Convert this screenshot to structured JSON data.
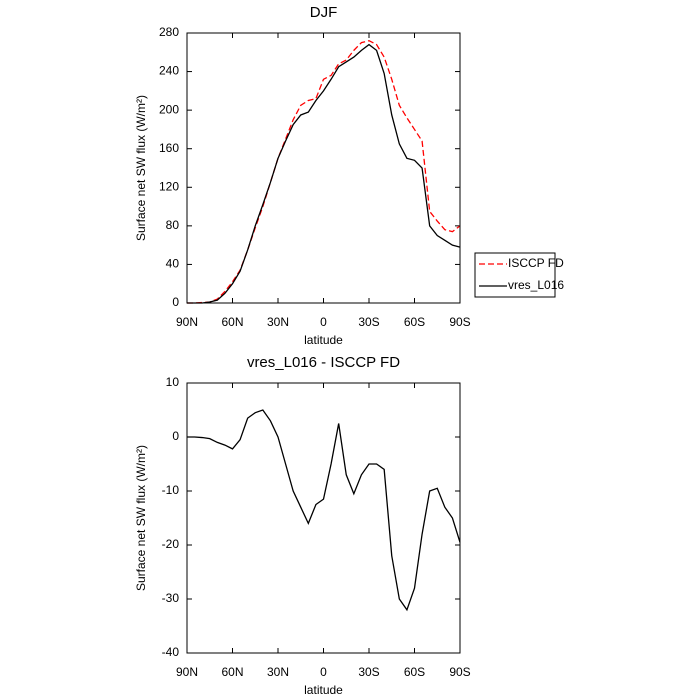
{
  "chart_data": [
    {
      "type": "line",
      "title": "DJF",
      "xlabel": "latitude",
      "ylabel": "Surface net SW flux (W/m²)",
      "x": [
        90,
        85,
        80,
        75,
        70,
        65,
        60,
        55,
        50,
        45,
        40,
        35,
        30,
        25,
        20,
        15,
        10,
        5,
        0,
        -5,
        -10,
        -15,
        -20,
        -25,
        -30,
        -35,
        -40,
        -45,
        -50,
        -55,
        -60,
        -65,
        -70,
        -75,
        -80,
        -85,
        -90
      ],
      "series": [
        {
          "name": "ISCCP FD",
          "color": "#ff0000",
          "dashed": true,
          "values": [
            0,
            0,
            0.5,
            1,
            4,
            12,
            22,
            34,
            55,
            78,
            100,
            125,
            150,
            170,
            190,
            205,
            210,
            212,
            232,
            236,
            248,
            252,
            262,
            270,
            272,
            268,
            255,
            232,
            205,
            192,
            180,
            168,
            95,
            85,
            76,
            74,
            80
          ]
        },
        {
          "name": "vres_L016",
          "color": "#000000",
          "dashed": false,
          "values": [
            0,
            0,
            0,
            1,
            3,
            10,
            20,
            33,
            55,
            80,
            102,
            125,
            150,
            168,
            185,
            195,
            198,
            210,
            220,
            232,
            245,
            250,
            255,
            262,
            268,
            262,
            238,
            195,
            165,
            150,
            148,
            140,
            80,
            70,
            65,
            60,
            58
          ]
        }
      ],
      "xlim": [
        90,
        -90
      ],
      "ylim": [
        0,
        280
      ],
      "xticks": [
        {
          "value": 90,
          "label": "90N"
        },
        {
          "value": 60,
          "label": "60N"
        },
        {
          "value": 30,
          "label": "30N"
        },
        0,
        {
          "value": -30,
          "label": "30S"
        },
        {
          "value": -60,
          "label": "60S"
        },
        {
          "value": -90,
          "label": "90S"
        }
      ],
      "yticks": [
        0,
        40,
        80,
        120,
        160,
        200,
        240,
        280
      ],
      "legend": "outside-right"
    },
    {
      "type": "line",
      "title": "vres_L016 - ISCCP FD",
      "xlabel": "latitude",
      "ylabel": "Surface net SW flux (W/m²)",
      "x": [
        90,
        85,
        80,
        75,
        70,
        65,
        60,
        55,
        50,
        45,
        40,
        35,
        30,
        25,
        20,
        15,
        10,
        5,
        0,
        -5,
        -10,
        -15,
        -20,
        -25,
        -30,
        -35,
        -40,
        -45,
        -50,
        -55,
        -60,
        -65,
        -70,
        -75,
        -80,
        -85,
        -90
      ],
      "series": [
        {
          "color": "#000000",
          "dashed": false,
          "values": [
            0,
            0,
            -0.1,
            -0.3,
            -1,
            -1.5,
            -2.2,
            -0.5,
            3.5,
            4.5,
            5,
            3,
            0,
            -5,
            -10,
            -13,
            -16,
            -12.5,
            -11.5,
            -5,
            2.5,
            -7,
            -10.5,
            -7,
            -5,
            -5,
            -6,
            -22,
            -30,
            -32,
            -28,
            -18,
            -10,
            -9.5,
            -13,
            -15,
            -19.5
          ]
        }
      ],
      "xlim": [
        90,
        -90
      ],
      "ylim": [
        -40,
        10
      ],
      "xticks": [
        {
          "value": 90,
          "label": "90N"
        },
        {
          "value": 60,
          "label": "60N"
        },
        {
          "value": 30,
          "label": "30N"
        },
        0,
        {
          "value": -30,
          "label": "30S"
        },
        {
          "value": -60,
          "label": "60S"
        },
        {
          "value": -90,
          "label": "90S"
        }
      ],
      "yticks": [
        -40,
        -30,
        -20,
        -10,
        0,
        10
      ]
    }
  ]
}
